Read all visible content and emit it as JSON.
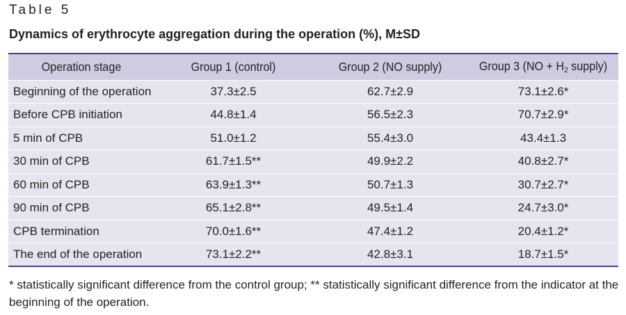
{
  "table_label": "Table 5",
  "title": "Dynamics of erythrocyte aggregation during the operation (%), M±SD",
  "columns": {
    "stage": "Operation stage",
    "group1": "Group 1 (control)",
    "group2": "Group 2 (NO supply)",
    "group3_prefix": "Group 3 (NO + H",
    "group3_sub": "2",
    "group3_suffix": " supply)"
  },
  "rows": [
    {
      "stage": "Beginning of the operation",
      "g1": "37.3±2.5",
      "g2": "62.7±2.9",
      "g3": "73.1±2.6*"
    },
    {
      "stage": "Before CPB initiation",
      "g1": "44.8±1.4",
      "g2": "56.5±2.3",
      "g3": "70.7±2.9*"
    },
    {
      "stage": "5 min of CPB",
      "g1": "51.0±1.2",
      "g2": "55.4±3.0",
      "g3": "43.4±1.3"
    },
    {
      "stage": "30 min of CPB",
      "g1": "61.7±1.5**",
      "g2": "49.9±2.2",
      "g3": "40.8±2.7*"
    },
    {
      "stage": "60 min of CPB",
      "g1": "63.9±1.3**",
      "g2": "50.7±1.3",
      "g3": "30.7±2.7*"
    },
    {
      "stage": "90 min of CPB",
      "g1": "65.1±2.8**",
      "g2": "49.5±1.4",
      "g3": "24.7±3.0*"
    },
    {
      "stage": "CPB termination",
      "g1": "70.0±1.6**",
      "g2": "47.4±1.2",
      "g3": "20.4±1.2*"
    },
    {
      "stage": "The end of the operation",
      "g1": "73.1±2.2**",
      "g2": "42.8±3.1",
      "g3": "18.7±1.5*"
    }
  ],
  "footnote": "* statistically significant difference from the control group; ** statistically significant difference from the indicator at the beginning of the operation.",
  "colors": {
    "header_bg": "#d1cbe2",
    "row_bg": "#e7e3ef",
    "rule": "#4b3f83"
  }
}
